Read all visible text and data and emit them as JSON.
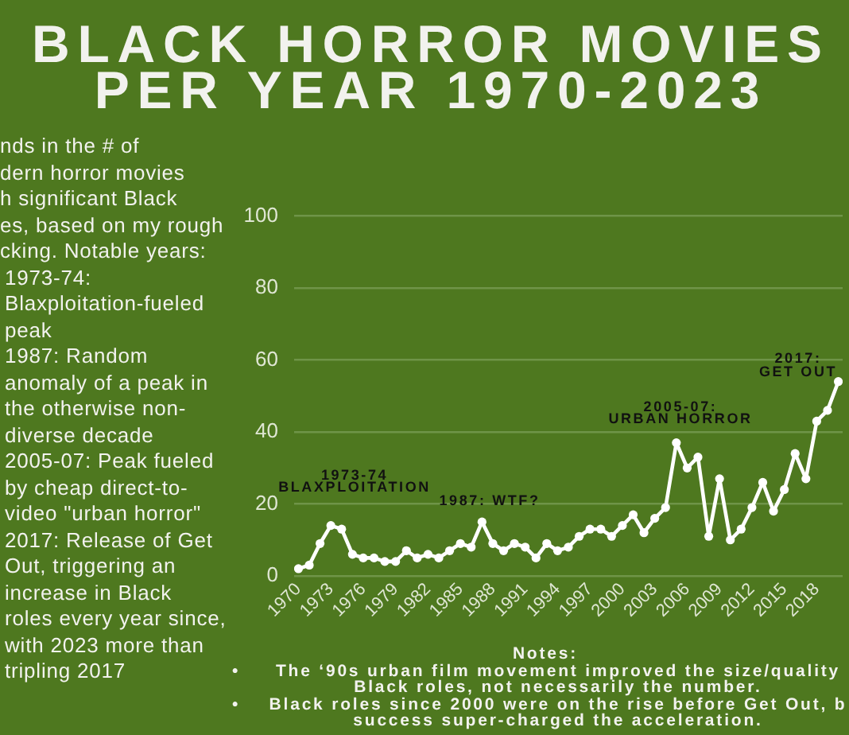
{
  "chart_data": {
    "type": "line",
    "title": "BLACK HORROR MOVIES PER YEAR 1970-2023",
    "x": [
      1970,
      1971,
      1972,
      1973,
      1974,
      1975,
      1976,
      1977,
      1978,
      1979,
      1980,
      1981,
      1982,
      1983,
      1984,
      1985,
      1986,
      1987,
      1988,
      1989,
      1990,
      1991,
      1992,
      1993,
      1994,
      1995,
      1996,
      1997,
      1998,
      1999,
      2000,
      2001,
      2002,
      2003,
      2004,
      2005,
      2006,
      2007,
      2008,
      2009,
      2010,
      2011,
      2012,
      2013,
      2014,
      2015,
      2016,
      2017,
      2018,
      2019,
      2020
    ],
    "series": [
      {
        "color": "#ffffff",
        "values": [
          2,
          3,
          9,
          14,
          13,
          6,
          5,
          5,
          4,
          4,
          7,
          5,
          6,
          5,
          7,
          9,
          8,
          15,
          9,
          7,
          9,
          8,
          5,
          9,
          7,
          8,
          11,
          13,
          13,
          11,
          14,
          17,
          12,
          16,
          19,
          37,
          30,
          33,
          11,
          27,
          10,
          13,
          19,
          26,
          18,
          24,
          34,
          27,
          43,
          46,
          54
        ]
      }
    ],
    "xlim": [
      1969.6,
      2020.4
    ],
    "xticks": [
      1970,
      1973,
      1976,
      1979,
      1982,
      1985,
      1988,
      1991,
      1994,
      1997,
      2000,
      2003,
      2006,
      2009,
      2012,
      2015,
      2018
    ],
    "ylim": [
      0,
      100
    ],
    "yticks": [
      0,
      20,
      40,
      60,
      80,
      100
    ],
    "grid": "y",
    "marker": "circle",
    "line_style": "solid",
    "annotations": [
      "1973-74\nBLAXPLOITATION",
      "1987: WTF?",
      "2005-07:\nURBAN HORROR",
      "2017:\nGET OUT",
      "nds in the # of\ndern horror movies\nh significant Black\nes, based on my rough\ncking. Notable years:",
      "1973-74:\nBlaxploitation-fueled\npeak",
      "1987: Random\nanomaly of a peak in\nthe otherwise non-\ndiverse decade",
      "2005-07: Peak fueled\nby cheap direct-to-\nvideo \"urban horror\"",
      "2017: Release of Get\nOut, triggering an\nincrease in Black\nroles every year since,\nwith 2023 more than\ntripling 2017",
      "Notes:",
      "•\tThe ‘90s urban film movement improved the size/quality\nBlack roles, not necessarily the number.",
      "•\tBlack roles since 2000 were on the rise before Get Out, b\nsuccess super-charged the acceleration."
    ]
  }
}
